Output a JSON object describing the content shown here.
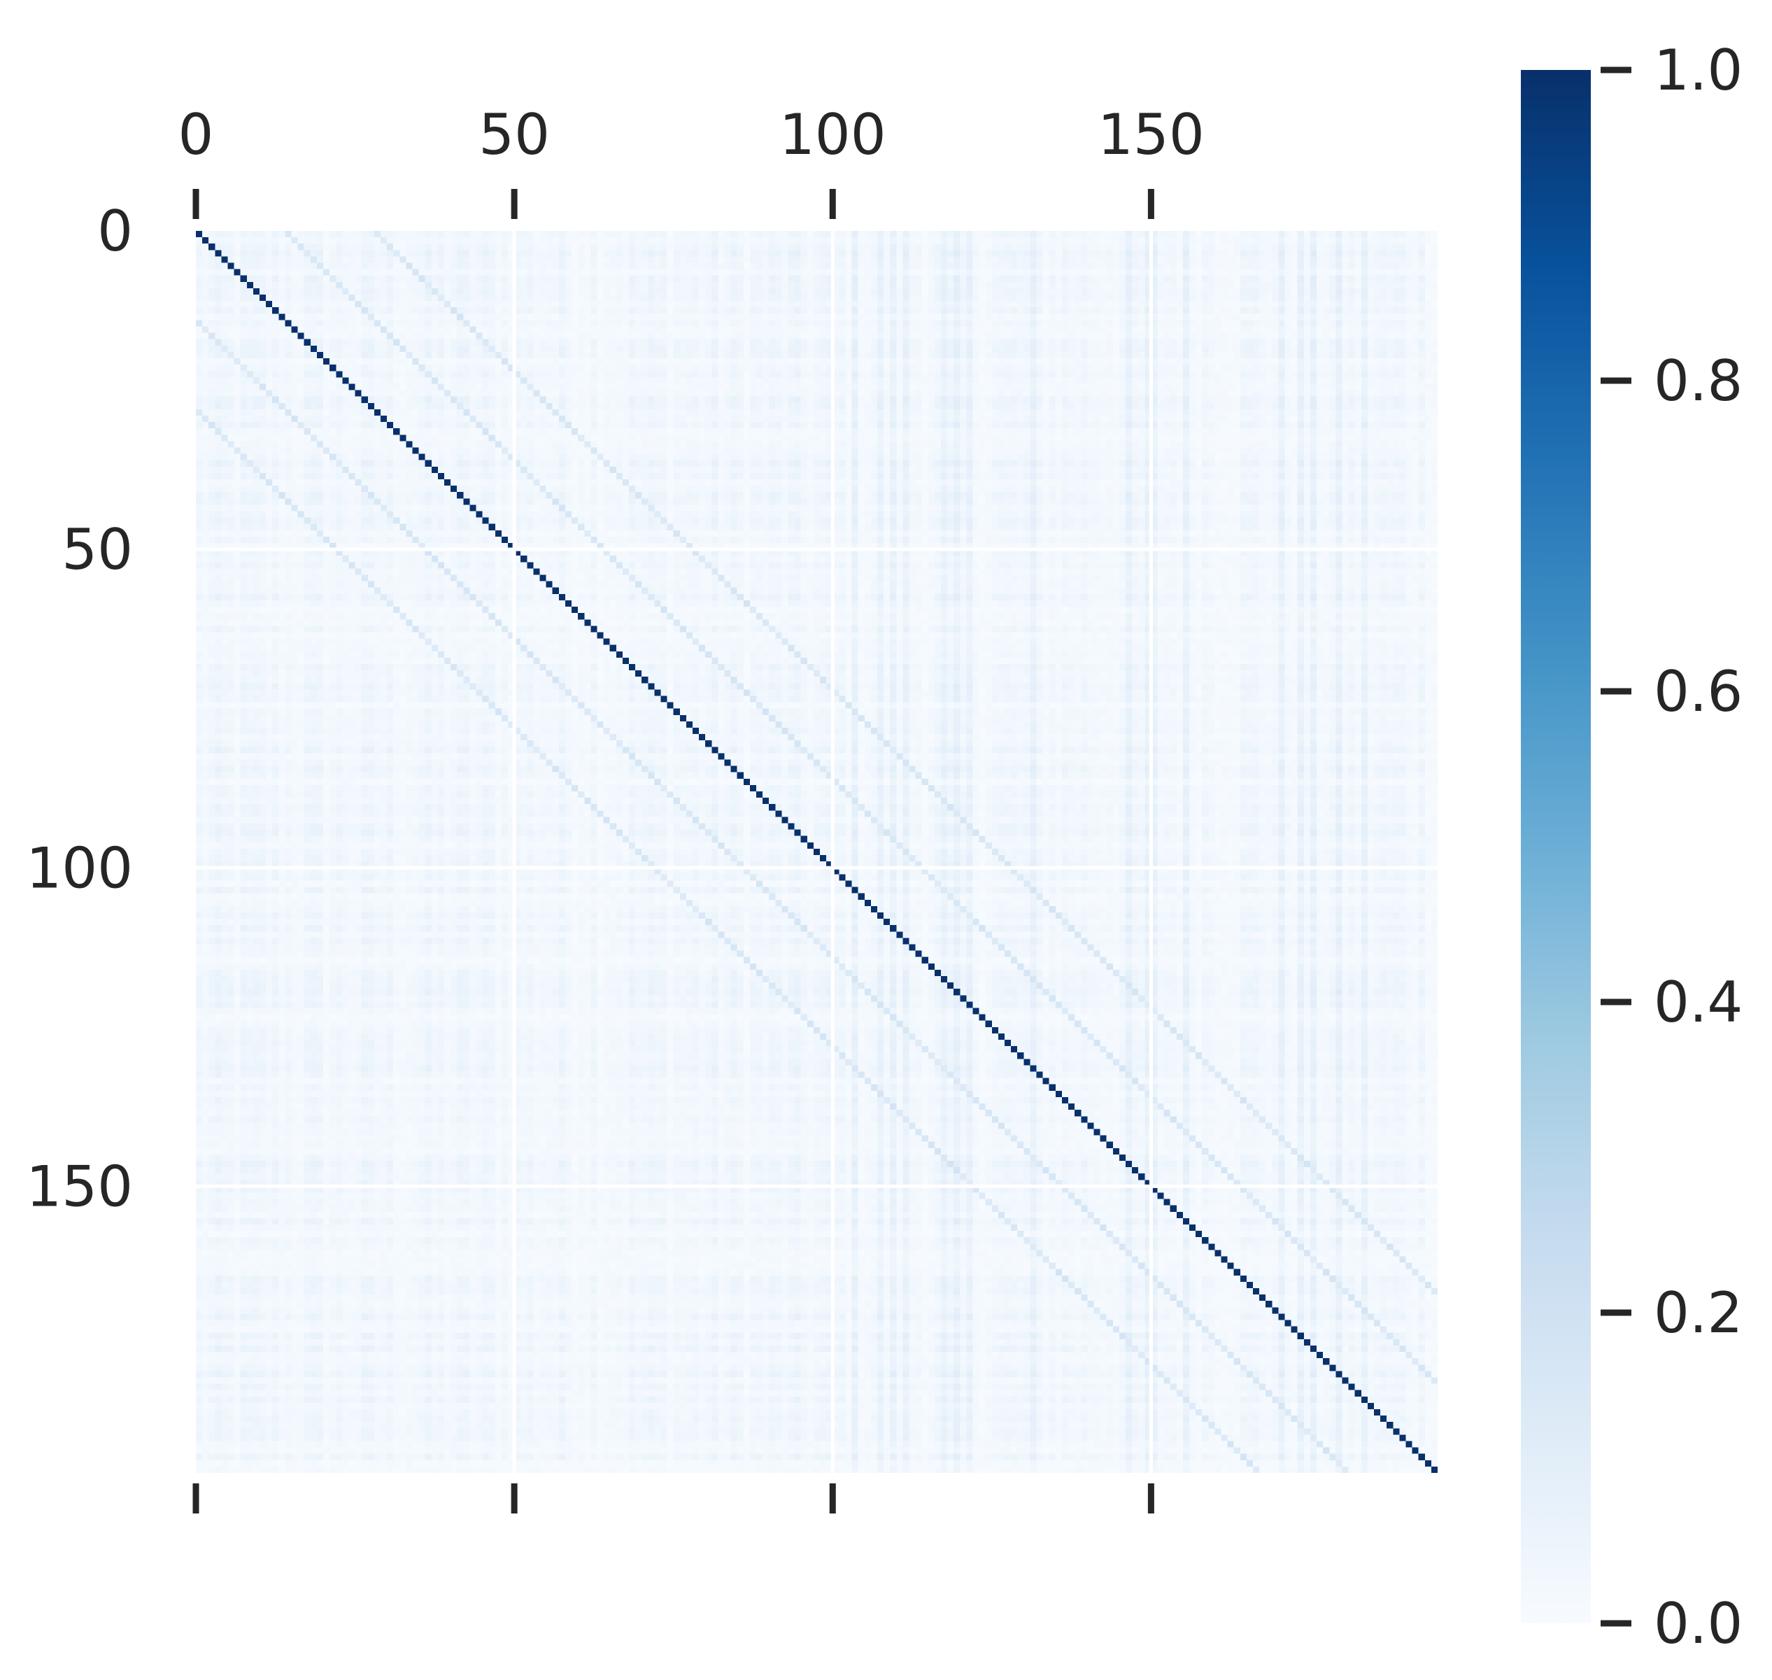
{
  "chart_data": {
    "type": "heatmap",
    "title": "",
    "xlabel": "",
    "ylabel": "",
    "n": 195,
    "x_ticks": [
      0,
      50,
      100,
      150
    ],
    "y_ticks": [
      0,
      50,
      100,
      150
    ],
    "x_tick_labels": [
      "0",
      "50",
      "100",
      "150"
    ],
    "y_tick_labels": [
      "0",
      "50",
      "100",
      "150"
    ],
    "x_ticks_position": "top",
    "grid": true,
    "colormap": "Blues",
    "value_range": [
      0.0,
      1.0
    ],
    "colorbar": {
      "ticks": [
        0.0,
        0.2,
        0.4,
        0.6,
        0.8,
        1.0
      ],
      "tick_labels": [
        "0.0",
        "0.2",
        "0.4",
        "0.6",
        "0.8",
        "1.0"
      ],
      "position": "right"
    },
    "description_values": {
      "diagonal": 1.0,
      "off_diagonal_band_offsets": [
        14,
        28
      ],
      "off_diagonal_band_value": 0.12,
      "background_value_range": [
        0.0,
        0.08
      ]
    },
    "colors": {
      "low": "#f7fbff",
      "high": "#08306b",
      "grid": "#ffffff",
      "text": "#262626"
    }
  }
}
